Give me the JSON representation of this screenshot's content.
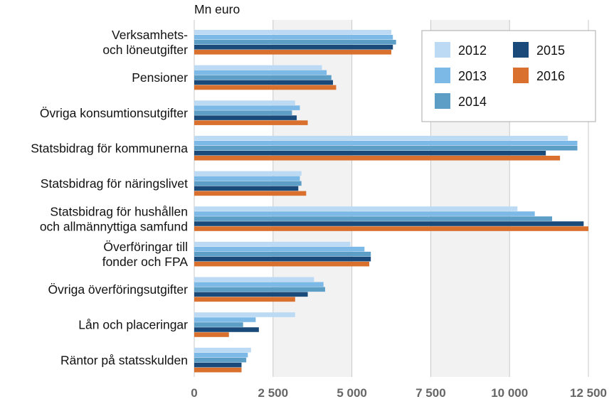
{
  "chart_data": {
    "type": "bar",
    "orientation": "horizontal",
    "unit_label": "Mn euro",
    "categories": [
      [
        "Verksamhets-",
        "och löneutgifter"
      ],
      [
        "Pensioner"
      ],
      [
        "Övriga konsumtionsutgifter"
      ],
      [
        "Statsbidrag för kommunerna"
      ],
      [
        "Statsbidrag för näringslivet"
      ],
      [
        "Statsbidrag för hushållen",
        "och allmännyttiga samfund"
      ],
      [
        "Överföringar till",
        "fonder och FPA"
      ],
      [
        "Övriga överföringsutgifter"
      ],
      [
        "Lån och placeringar"
      ],
      [
        "Räntor på statsskulden"
      ]
    ],
    "series": [
      {
        "name": "2012",
        "color": "#bcdaf3",
        "values": [
          6250,
          4050,
          3200,
          11850,
          3400,
          10250,
          4950,
          3800,
          3200,
          1800
        ]
      },
      {
        "name": "2013",
        "color": "#7db9e6",
        "values": [
          6300,
          4200,
          3350,
          12150,
          3350,
          10800,
          5400,
          4100,
          1950,
          1700
        ]
      },
      {
        "name": "2014",
        "color": "#5d9ec7",
        "values": [
          6400,
          4350,
          3100,
          12150,
          3400,
          11350,
          5600,
          4150,
          1550,
          1650
        ]
      },
      {
        "name": "2015",
        "color": "#1a4a7a",
        "values": [
          6300,
          4400,
          3250,
          11150,
          3300,
          12350,
          5600,
          3600,
          2050,
          1500
        ]
      },
      {
        "name": "2016",
        "color": "#d9702e",
        "values": [
          6250,
          4500,
          3600,
          11600,
          3550,
          12500,
          5550,
          3200,
          1100,
          1500
        ]
      }
    ],
    "xlim": [
      0,
      12500
    ],
    "xticks": [
      0,
      2500,
      5000,
      7500,
      10000,
      12500
    ],
    "xtick_labels": [
      "0",
      "2 500",
      "5 000",
      "7 500",
      "10 000",
      "12 500"
    ],
    "grid": true,
    "legend_placement": "top-right"
  }
}
